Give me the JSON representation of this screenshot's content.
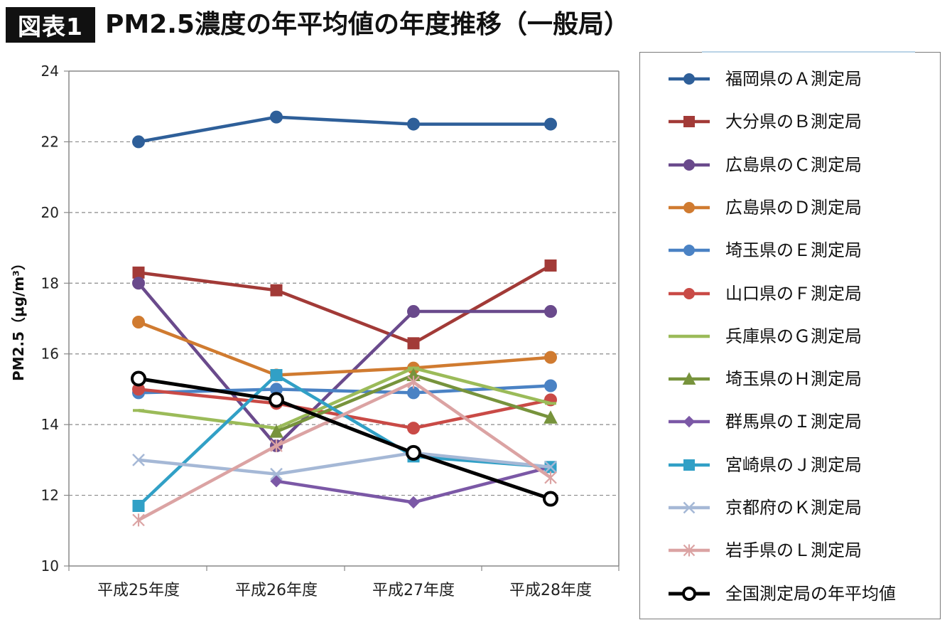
{
  "header": {
    "badge": "図表1",
    "title": "PM2.5濃度の年平均値の年度推移（一般局）"
  },
  "chart_data": {
    "type": "line",
    "title": "PM2.5濃度の年平均値の年度推移（一般局）",
    "xlabel": "",
    "ylabel": "PM2.5（μg/m³）",
    "ylim": [
      10,
      24
    ],
    "yticks": [
      10,
      12,
      14,
      16,
      18,
      20,
      22,
      24
    ],
    "grid": "horizontal dashed",
    "legend_position": "right",
    "categories": [
      "平成25年度",
      "平成26年度",
      "平成27年度",
      "平成28年度"
    ],
    "series": [
      {
        "name": "福岡県のＡ測定局",
        "values": [
          22.0,
          22.7,
          22.5,
          22.5
        ],
        "color": "#2e5f99",
        "marker": "circle"
      },
      {
        "name": "大分県のＢ測定局",
        "values": [
          18.3,
          17.8,
          16.3,
          18.5
        ],
        "color": "#a23a37",
        "marker": "square"
      },
      {
        "name": "広島県のＣ測定局",
        "values": [
          18.0,
          13.4,
          17.2,
          17.2
        ],
        "color": "#6a4a8c",
        "marker": "circle"
      },
      {
        "name": "広島県のＤ測定局",
        "values": [
          16.9,
          15.4,
          15.6,
          15.9
        ],
        "color": "#d07b30",
        "marker": "circle"
      },
      {
        "name": "埼玉県のＥ測定局",
        "values": [
          14.9,
          15.0,
          14.9,
          15.1
        ],
        "color": "#4a82c4",
        "marker": "circle"
      },
      {
        "name": "山口県のＦ測定局",
        "values": [
          15.0,
          14.6,
          13.9,
          14.7
        ],
        "color": "#c94a46",
        "marker": "circle"
      },
      {
        "name": "兵庫県のＧ測定局",
        "values": [
          14.4,
          13.9,
          15.6,
          14.6
        ],
        "color": "#9bbb59",
        "marker": "dash"
      },
      {
        "name": "埼玉県のＨ測定局",
        "values": [
          null,
          13.8,
          15.4,
          14.2
        ],
        "color": "#77933c",
        "marker": "triangle"
      },
      {
        "name": "群馬県のＩ測定局",
        "values": [
          null,
          12.4,
          11.8,
          12.8
        ],
        "color": "#7b58a6",
        "marker": "diamond"
      },
      {
        "name": "宮崎県のＪ測定局",
        "values": [
          11.7,
          15.4,
          13.1,
          12.8
        ],
        "color": "#31a0c6",
        "marker": "square"
      },
      {
        "name": "京都府のＫ測定局",
        "values": [
          13.0,
          12.6,
          13.2,
          12.8
        ],
        "color": "#a5b8d6",
        "marker": "x"
      },
      {
        "name": "岩手県のＬ測定局",
        "values": [
          11.3,
          13.4,
          15.2,
          12.5
        ],
        "color": "#dba3a3",
        "marker": "star"
      },
      {
        "name": "全国測定局の年平均値",
        "values": [
          15.3,
          14.7,
          13.2,
          11.9
        ],
        "color": "#000000",
        "marker": "open-circle"
      }
    ]
  }
}
